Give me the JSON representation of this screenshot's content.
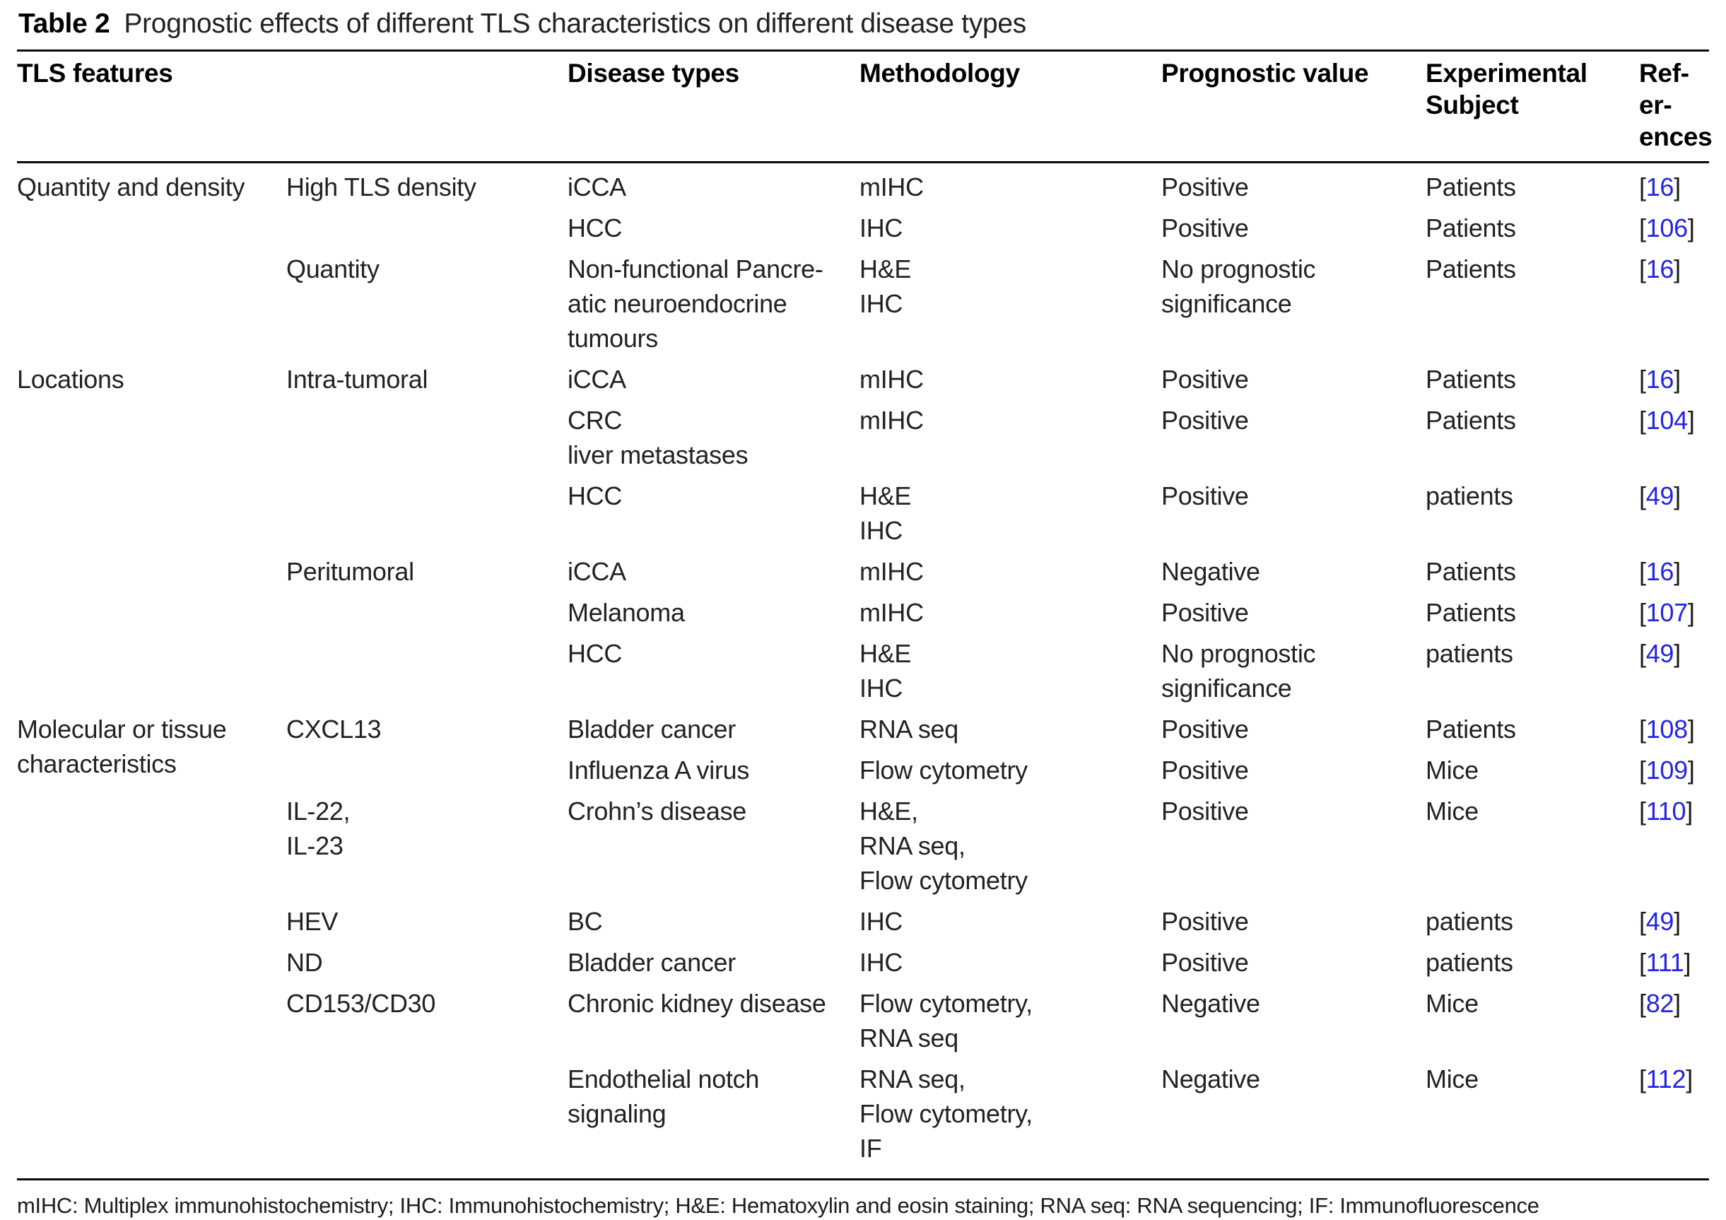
{
  "title": {
    "label": "Table 2",
    "text": "Prognostic effects of different TLS characteristics on different disease types"
  },
  "header": {
    "tls_features": "TLS features",
    "blank": "",
    "disease_types": "Disease types",
    "methodology": "Methodology",
    "prognostic_value": "Prognostic value",
    "experimental_subject": "Experimental\nSubject",
    "references": "Ref-\ner-\nences"
  },
  "refmark": {
    "open": "[",
    "close": "]"
  },
  "colors": {
    "reference_link": "#2424e8",
    "text": "#242122",
    "rule": "#0a0a0a"
  },
  "rows": [
    {
      "feature": "Quantity and density",
      "sub": "High TLS density",
      "disease": "iCCA",
      "methodology": "mIHC",
      "prognostic": "Positive",
      "subject": "Patients",
      "ref": "16"
    },
    {
      "feature": "",
      "sub": "",
      "disease": "HCC",
      "methodology": "IHC",
      "prognostic": "Positive",
      "subject": "Patients",
      "ref": "106"
    },
    {
      "feature": "",
      "sub": "Quantity",
      "disease": "Non-functional Pancre-\natic neuroendocrine\ntumours",
      "methodology": "H&E\nIHC",
      "prognostic": "No prognostic\nsignificance",
      "subject": "Patients",
      "ref": "16"
    },
    {
      "feature": "Locations",
      "sub": "Intra-tumoral",
      "disease": "iCCA",
      "methodology": "mIHC",
      "prognostic": "Positive",
      "subject": "Patients",
      "ref": "16"
    },
    {
      "feature": "",
      "sub": "",
      "disease": "CRC\nliver metastases",
      "methodology": "mIHC",
      "prognostic": "Positive",
      "subject": "Patients",
      "ref": "104"
    },
    {
      "feature": "",
      "sub": "",
      "disease": "HCC",
      "methodology": "H&E\nIHC",
      "prognostic": "Positive",
      "subject": "patients",
      "ref": "49"
    },
    {
      "feature": "",
      "sub": "Peritumoral",
      "disease": "iCCA",
      "methodology": "mIHC",
      "prognostic": "Negative",
      "subject": "Patients",
      "ref": "16"
    },
    {
      "feature": "",
      "sub": "",
      "disease": "Melanoma",
      "methodology": "mIHC",
      "prognostic": "Positive",
      "subject": "Patients",
      "ref": "107"
    },
    {
      "feature": "",
      "sub": "",
      "disease": "HCC",
      "methodology": "H&E\nIHC",
      "prognostic": "No prognostic\nsignificance",
      "subject": "patients",
      "ref": "49"
    },
    {
      "feature": "Molecular or tissue\ncharacteristics",
      "sub": "CXCL13",
      "disease": "Bladder cancer",
      "methodology": "RNA seq",
      "prognostic": "Positive",
      "subject": "Patients",
      "ref": "108"
    },
    {
      "feature": "",
      "sub": "",
      "disease": "Influenza A virus",
      "methodology": "Flow cytometry",
      "prognostic": "Positive",
      "subject": "Mice",
      "ref": "109"
    },
    {
      "feature": "",
      "sub": "IL-22,\nIL-23",
      "disease": "Crohn’s disease",
      "methodology": "H&E,\nRNA seq,\nFlow cytometry",
      "prognostic": "Positive",
      "subject": "Mice",
      "ref": "110"
    },
    {
      "feature": "",
      "sub": "HEV",
      "disease": "BC",
      "methodology": "IHC",
      "prognostic": "Positive",
      "subject": "patients",
      "ref": "49"
    },
    {
      "feature": "",
      "sub": "ND",
      "disease": "Bladder cancer",
      "methodology": "IHC",
      "prognostic": "Positive",
      "subject": "patients",
      "ref": "111"
    },
    {
      "feature": "",
      "sub": "CD153/CD30",
      "disease": "Chronic kidney disease",
      "methodology": "Flow cytometry,\nRNA seq",
      "prognostic": "Negative",
      "subject": "Mice",
      "ref": "82"
    },
    {
      "feature": "",
      "sub": "",
      "disease": "Endothelial notch\nsignaling",
      "methodology": "RNA seq,\nFlow cytometry,\nIF",
      "prognostic": "Negative",
      "subject": "Mice",
      "ref": "112"
    }
  ],
  "footnote": "mIHC: Multiplex immunohistochemistry; IHC: Immunohistochemistry; H&E: Hematoxylin and eosin staining; RNA seq: RNA sequencing; IF: Immunofluorescence"
}
